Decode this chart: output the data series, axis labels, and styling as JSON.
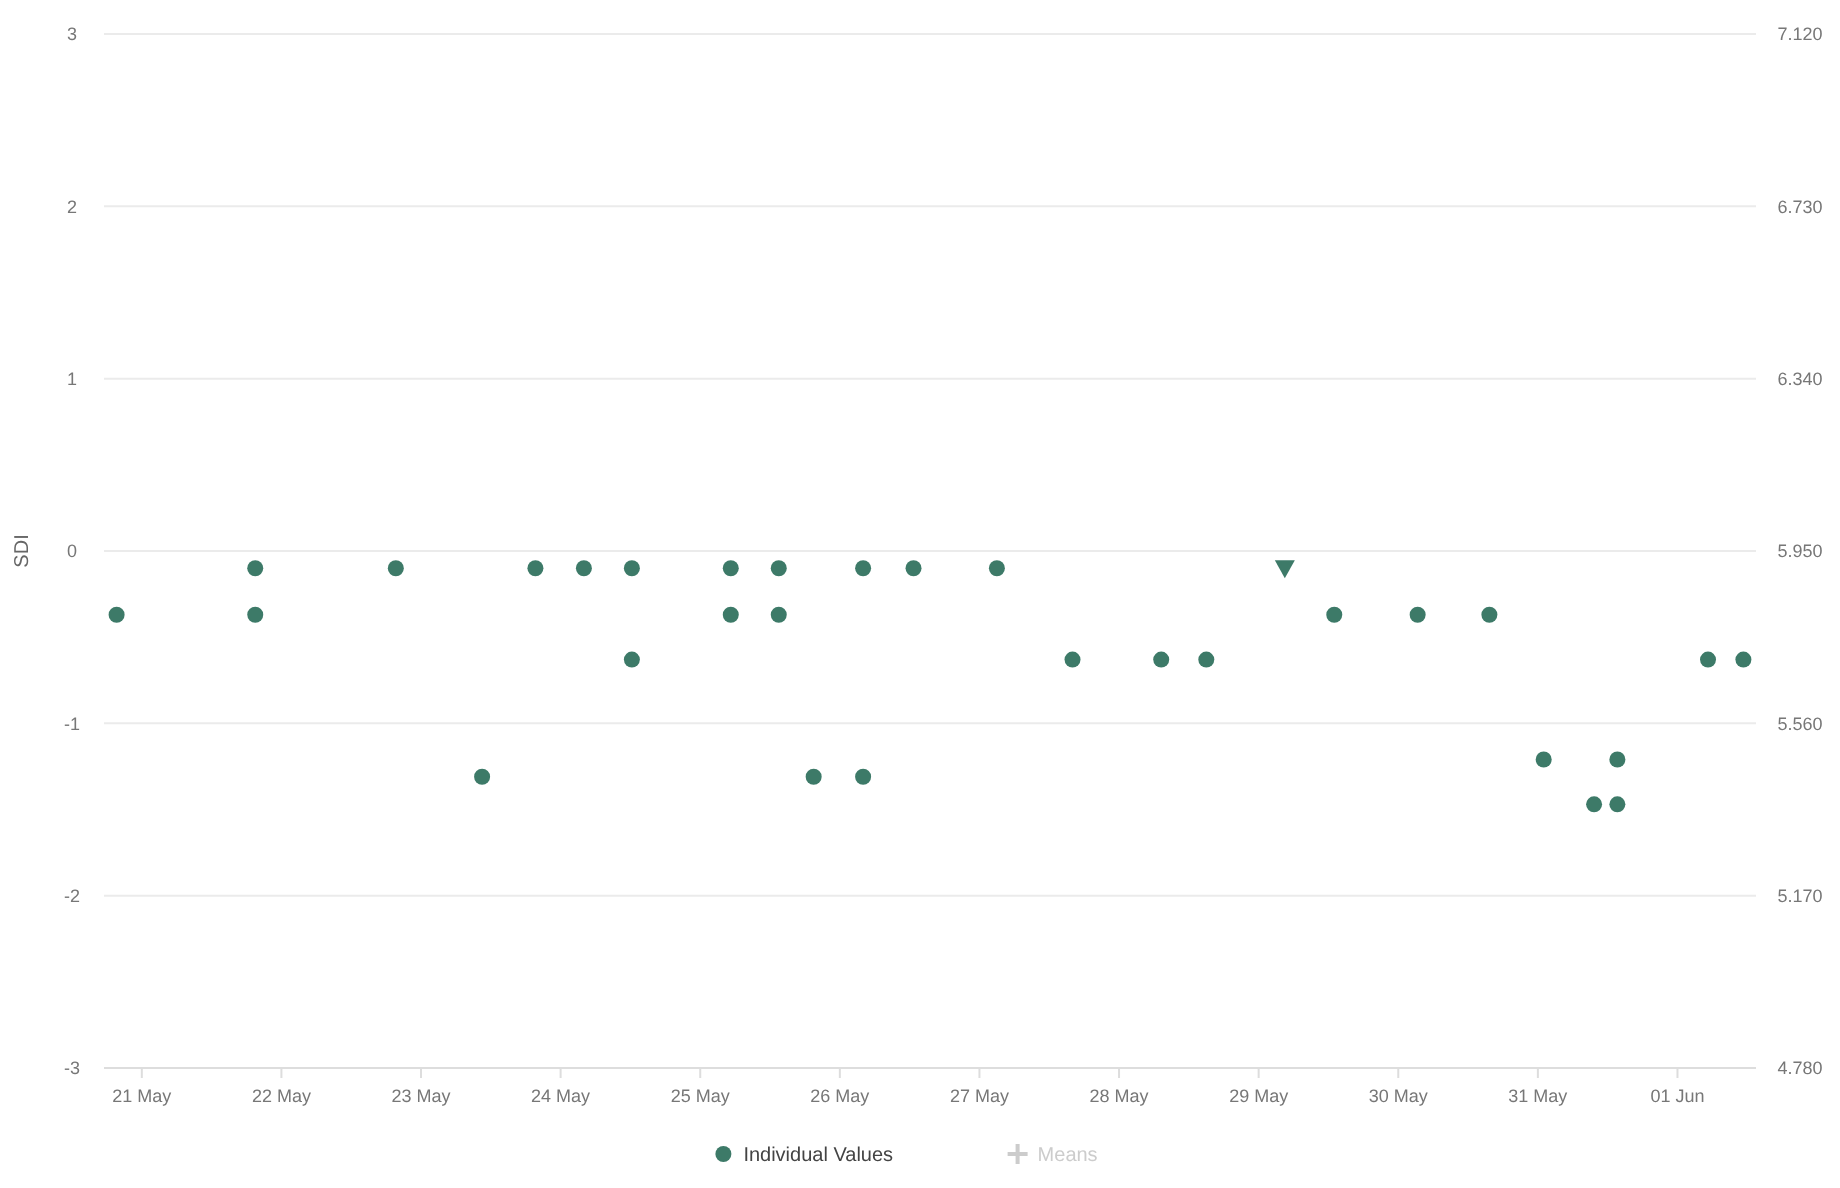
{
  "chart_data": {
    "type": "scatter",
    "ylabel": "SDI",
    "xlim": [
      "--05-20T17:30",
      "--06-01T13:30"
    ],
    "xticks": [
      {
        "value": "--05-21",
        "label": "21 May"
      },
      {
        "value": "--05-22",
        "label": "22 May"
      },
      {
        "value": "--05-23",
        "label": "23 May"
      },
      {
        "value": "--05-24",
        "label": "24 May"
      },
      {
        "value": "--05-25",
        "label": "25 May"
      },
      {
        "value": "--05-26",
        "label": "26 May"
      },
      {
        "value": "--05-27",
        "label": "27 May"
      },
      {
        "value": "--05-28",
        "label": "28 May"
      },
      {
        "value": "--05-29",
        "label": "29 May"
      },
      {
        "value": "--05-30",
        "label": "30 May"
      },
      {
        "value": "--05-31",
        "label": "31 May"
      },
      {
        "value": "--06-01",
        "label": "01 Jun"
      }
    ],
    "ylim": [
      -3,
      3
    ],
    "yticks": [
      -3,
      -2,
      -1,
      0,
      1,
      2,
      3
    ],
    "y2lim": [
      4.78,
      7.12
    ],
    "y2ticks": [
      {
        "value": 4.78,
        "label": "4.780"
      },
      {
        "value": 5.17,
        "label": "5.170"
      },
      {
        "value": 5.56,
        "label": "5.560"
      },
      {
        "value": 5.95,
        "label": "5.950"
      },
      {
        "value": 6.34,
        "label": "6.340"
      },
      {
        "value": 6.73,
        "label": "6.730"
      },
      {
        "value": 7.12,
        "label": "7.120"
      }
    ],
    "grid": "y",
    "legend": "bottom",
    "series": [
      {
        "name": "Individual Values",
        "color": "#3d7a68",
        "marker": "circle",
        "x": [
          "--05-20T19:40",
          "--05-21T19:30",
          "--05-21T19:30",
          "--05-22T19:40",
          "--05-23T10:30",
          "--05-23T19:40",
          "--05-24T04:00",
          "--05-24T12:15",
          "--05-24T12:15",
          "--05-25T05:15",
          "--05-25T05:15",
          "--05-25T13:30",
          "--05-25T13:30",
          "--05-25T19:30",
          "--05-26T04:00",
          "--05-26T04:00",
          "--05-26T12:40",
          "--05-27T03:00",
          "--05-27T16:00",
          "--05-28T07:15",
          "--05-28T15:00",
          "--05-29T13:00",
          "--05-30T03:20",
          "--05-30T15:40",
          "--05-31T01:00",
          "--05-31T09:40",
          "--05-31T13:40",
          "--05-31T13:40",
          "--06-01T05:15",
          "--06-01T11:20"
        ],
        "values": [
          -0.37,
          -0.1,
          -0.37,
          -0.1,
          -1.31,
          -0.1,
          -0.1,
          -0.1,
          -0.63,
          -0.1,
          -0.37,
          -0.1,
          -0.37,
          -1.31,
          -0.1,
          -1.31,
          -0.1,
          -0.1,
          -0.63,
          -0.63,
          -0.63,
          -0.37,
          -0.37,
          -0.37,
          -1.21,
          -1.47,
          -1.47,
          -1.21,
          -0.63,
          -0.63
        ]
      },
      {
        "color": "#3d7a68",
        "marker": "triangle",
        "x": [
          "--05-29T04:30"
        ],
        "values": [
          -0.1
        ]
      },
      {
        "name": "Means",
        "color": "#cccccc",
        "marker": "cross"
      }
    ]
  }
}
